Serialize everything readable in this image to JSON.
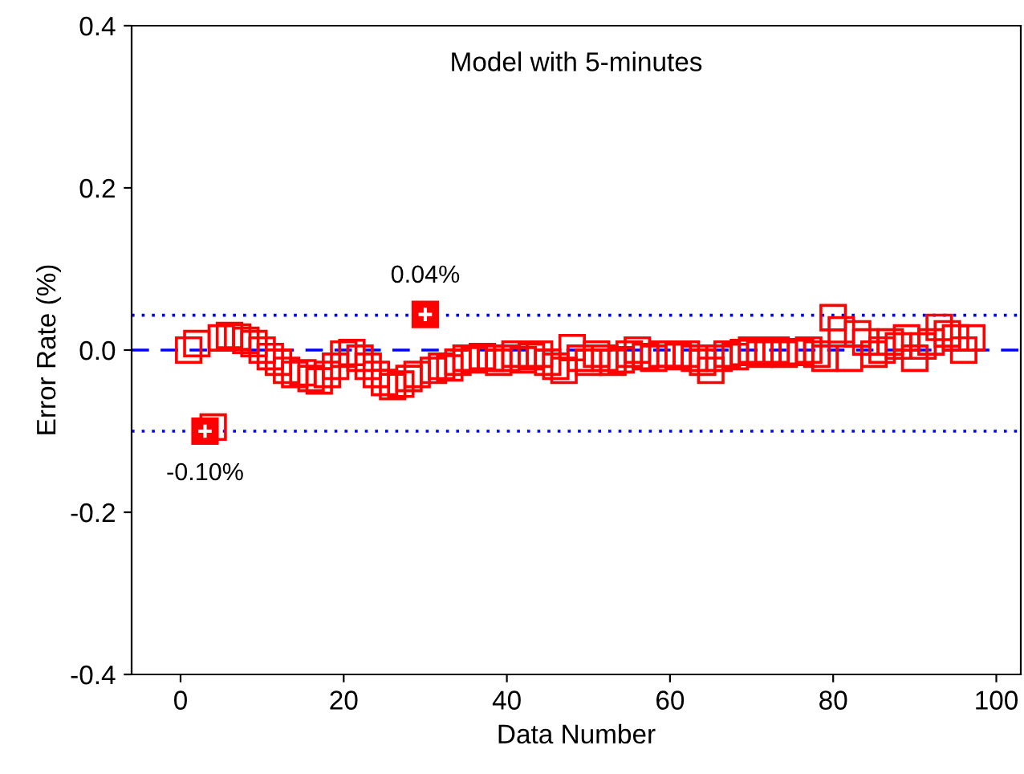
{
  "chart_data": {
    "type": "scatter",
    "title": "Model with 5-minutes",
    "xlabel": "Data Number",
    "ylabel": "Error Rate (%)",
    "xlim": [
      -6,
      103
    ],
    "xticks": [
      0,
      20,
      40,
      60,
      80,
      100
    ],
    "ylim": [
      -0.4,
      0.4
    ],
    "yticks": [
      {
        "value": -0.4,
        "label": "-0.4"
      },
      {
        "value": -0.2,
        "label": "-0.2"
      },
      {
        "value": 0.0,
        "label": "0.0"
      },
      {
        "value": 0.2,
        "label": "0.2"
      },
      {
        "value": 0.4,
        "label": "0.4"
      }
    ],
    "marker": "square",
    "grid": false,
    "legend": false,
    "series": [
      {
        "color": "#ff0000",
        "x": [
          1,
          2,
          4,
          5,
          6,
          7,
          8,
          9,
          10,
          11,
          12,
          13,
          14,
          15,
          16,
          17,
          18,
          19,
          20,
          21,
          22,
          23,
          24,
          25,
          26,
          27,
          28,
          29,
          31,
          32,
          33,
          34,
          35,
          36,
          37,
          38,
          39,
          40,
          41,
          42,
          43,
          44,
          45,
          46,
          47,
          48,
          49,
          50,
          51,
          52,
          53,
          54,
          55,
          56,
          57,
          58,
          59,
          60,
          61,
          62,
          63,
          64,
          65,
          66,
          67,
          68,
          69,
          70,
          71,
          72,
          73,
          74,
          75,
          76,
          77,
          78,
          79,
          80,
          81,
          82,
          83,
          84,
          85,
          86,
          87,
          88,
          89,
          90,
          91,
          92,
          93,
          94,
          95,
          96,
          97
        ],
        "values": [
          0.0,
          0.008,
          -0.095,
          0.015,
          0.018,
          0.016,
          0.012,
          0.008,
          0.0,
          -0.008,
          -0.015,
          -0.025,
          -0.03,
          -0.028,
          -0.035,
          -0.038,
          -0.03,
          -0.02,
          -0.005,
          -0.003,
          -0.01,
          -0.02,
          -0.03,
          -0.04,
          -0.045,
          -0.042,
          -0.035,
          -0.03,
          -0.025,
          -0.02,
          -0.022,
          -0.015,
          -0.01,
          -0.012,
          -0.008,
          -0.01,
          -0.015,
          -0.01,
          -0.005,
          -0.012,
          -0.008,
          -0.005,
          -0.015,
          -0.02,
          -0.025,
          0.003,
          -0.01,
          -0.015,
          -0.005,
          -0.01,
          -0.015,
          -0.012,
          -0.005,
          0.0,
          -0.008,
          -0.01,
          -0.005,
          -0.005,
          -0.008,
          -0.005,
          -0.01,
          -0.015,
          -0.025,
          -0.01,
          -0.005,
          -0.008,
          -0.003,
          0.0,
          -0.005,
          -0.003,
          0.0,
          -0.005,
          -0.003,
          -0.002,
          0.0,
          -0.005,
          -0.01,
          0.04,
          0.025,
          -0.01,
          0.02,
          0.01,
          -0.005,
          0.0,
          0.01,
          0.005,
          0.015,
          -0.01,
          0.005,
          0.01,
          0.028,
          0.02,
          0.015,
          0.0,
          0.015
        ]
      },
      {
        "color": "#ff0000",
        "x": [
          3,
          30
        ],
        "values": [
          -0.1,
          0.044
        ]
      }
    ],
    "ref_lines": [
      {
        "axis": "y",
        "value": 0.0,
        "color": "#0000ff",
        "line_style": "dashed"
      },
      {
        "axis": "y",
        "value": 0.043,
        "color": "#0000ff",
        "line_style": "dotted"
      },
      {
        "axis": "y",
        "value": -0.1,
        "color": "#0000ff",
        "line_style": "dotted"
      }
    ],
    "annotations": [
      {
        "text": "0.04%",
        "x": 30,
        "y": 0.044
      },
      {
        "text": "-0.10%",
        "x": 3,
        "y": -0.1
      }
    ]
  }
}
